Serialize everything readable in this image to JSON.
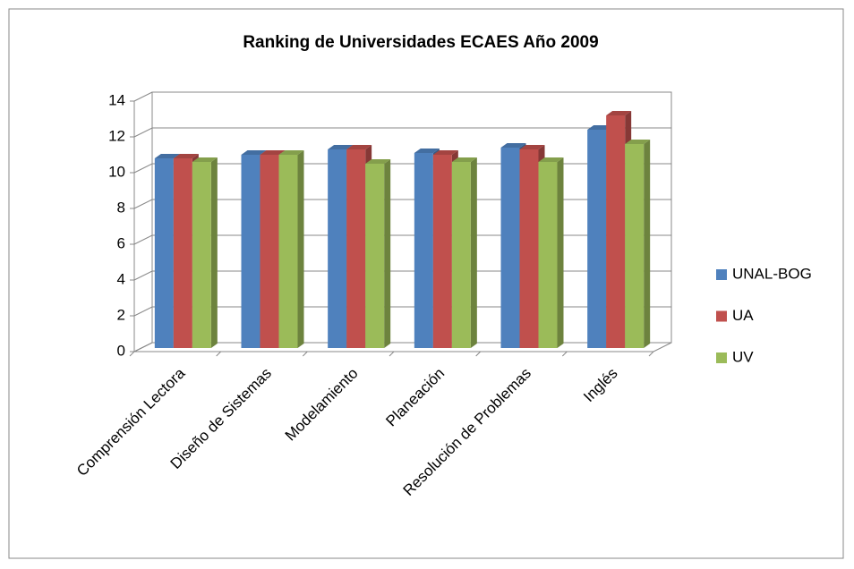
{
  "chart_data": {
    "type": "bar3d",
    "title": "Ranking de Universidades ECAES Año 2009",
    "categories": [
      "Comprensión Lectora",
      "Diseño de Sistemas",
      "Modelamiento",
      "Planeación",
      "Resolución de Problemas",
      "Inglés"
    ],
    "series": [
      {
        "name": "UNAL-BOG",
        "color": "#4f81bd",
        "values": [
          10.6,
          10.8,
          11.1,
          10.9,
          11.2,
          12.2
        ]
      },
      {
        "name": "UA",
        "color": "#c0504d",
        "values": [
          10.6,
          10.8,
          11.1,
          10.8,
          11.1,
          13.0
        ]
      },
      {
        "name": "UV",
        "color": "#9bbb59",
        "values": [
          10.4,
          10.8,
          10.3,
          10.4,
          10.4,
          11.4
        ]
      }
    ],
    "ylim": [
      0,
      14
    ],
    "yticks": [
      0,
      2,
      4,
      6,
      8,
      10,
      12,
      14
    ],
    "grid": true,
    "legend": "right"
  }
}
